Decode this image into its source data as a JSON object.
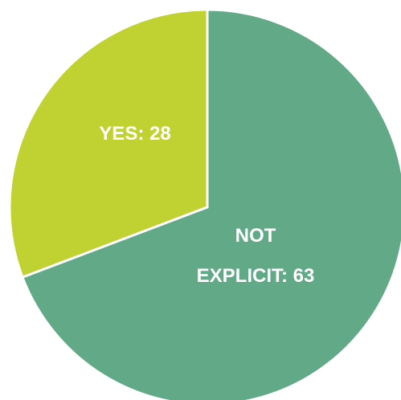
{
  "chart_data": {
    "type": "pie",
    "title": "",
    "slices": [
      {
        "label": "YES",
        "value": 28,
        "color": "#bfd232",
        "label_lines": [
          "YES: 28"
        ]
      },
      {
        "label": "NOT EXPLICIT",
        "value": 63,
        "color": "#62a987",
        "label_lines": [
          "NOT",
          "EXPLICIT: 63"
        ]
      }
    ],
    "start_angle_deg": 0,
    "direction": "counterclockwise",
    "border_color": "#ffffff",
    "legend": "none"
  }
}
